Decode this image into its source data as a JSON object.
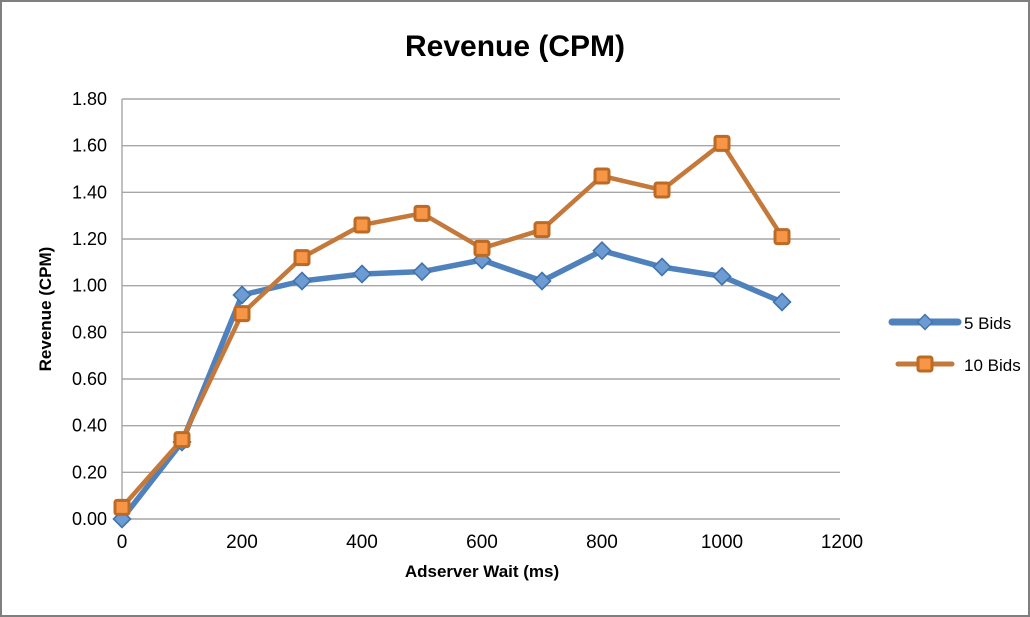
{
  "window": {
    "background": "#FFFFFF",
    "border_color": "#7F7F7F"
  },
  "chart_data": {
    "type": "line",
    "title": "Revenue (CPM)",
    "xlabel": "Adserver Wait (ms)",
    "ylabel": "Revenue (CPM)",
    "x": [
      0,
      100,
      200,
      300,
      400,
      500,
      600,
      700,
      800,
      900,
      1000,
      1100
    ],
    "xlim": [
      0,
      1200
    ],
    "ylim": [
      0,
      1.8
    ],
    "x_ticks": [
      0,
      200,
      400,
      600,
      800,
      1000,
      1200
    ],
    "x_tick_labels": [
      "0",
      "200",
      "400",
      "600",
      "800",
      "1000",
      "1200"
    ],
    "y_ticks": [
      0,
      0.2,
      0.4,
      0.6,
      0.8,
      1.0,
      1.2,
      1.4,
      1.6,
      1.8
    ],
    "y_tick_labels": [
      "0.00",
      "0.20",
      "0.40",
      "0.60",
      "0.80",
      "1.00",
      "1.20",
      "1.40",
      "1.60",
      "1.80"
    ],
    "grid": "horizontal",
    "gridline_color": "#A6A6A6",
    "legend_position": "right",
    "series": [
      {
        "name": "5 Bids",
        "marker": "diamond",
        "line_color": "#4F81BD",
        "marker_fill": "#6D9CD4",
        "marker_stroke": "#4273A9",
        "values": [
          0.0,
          0.33,
          0.96,
          1.02,
          1.05,
          1.06,
          1.11,
          1.02,
          1.15,
          1.08,
          1.04,
          0.93
        ]
      },
      {
        "name": "10 Bids",
        "marker": "square",
        "line_color": "#C4783A",
        "marker_fill": "#F79646",
        "marker_stroke": "#BC6A24",
        "values": [
          0.05,
          0.34,
          0.88,
          1.12,
          1.26,
          1.31,
          1.16,
          1.24,
          1.47,
          1.41,
          1.61,
          1.21
        ]
      }
    ]
  }
}
